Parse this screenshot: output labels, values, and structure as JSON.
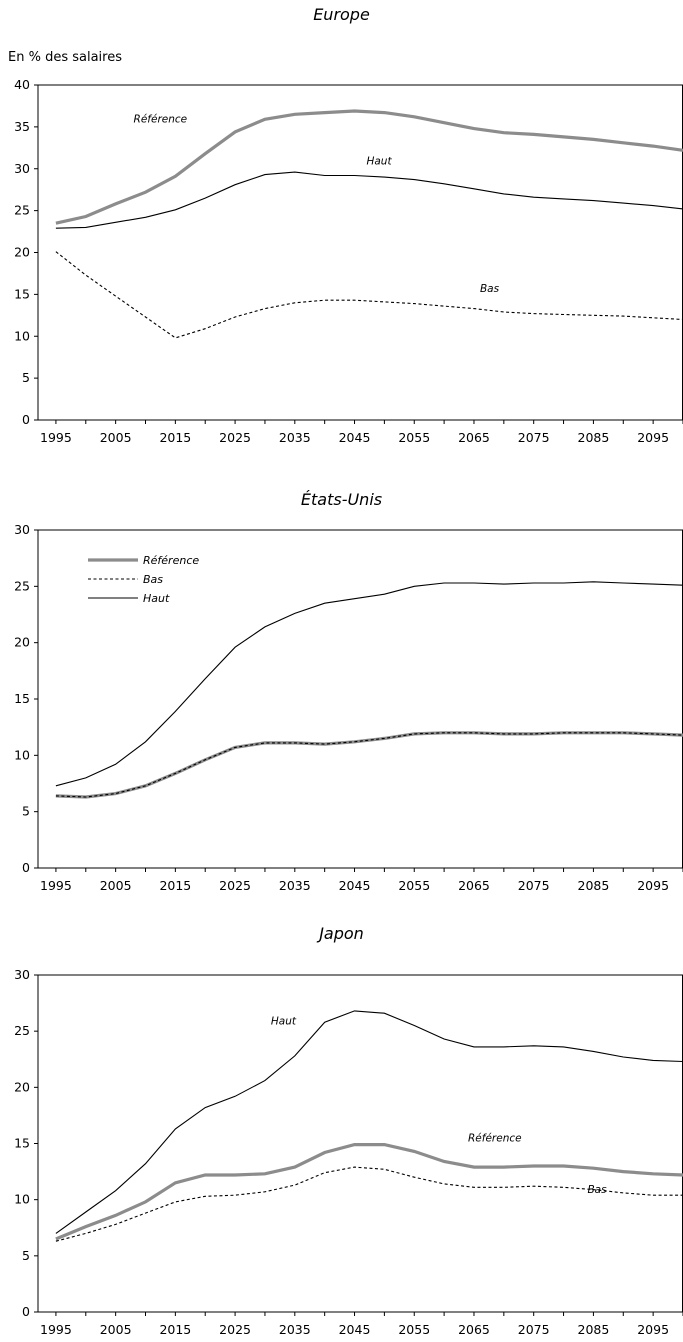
{
  "chart_data": [
    {
      "type": "line",
      "title": "Europe",
      "ylabel": "En % des salaires",
      "xlabel": "",
      "ylim": [
        0,
        40
      ],
      "yticks": [
        0,
        5,
        10,
        15,
        20,
        25,
        30,
        35,
        40
      ],
      "xlim": [
        1992,
        2100
      ],
      "xticks": [
        1995,
        2005,
        2015,
        2025,
        2035,
        2045,
        2055,
        2065,
        2075,
        2085,
        2095
      ],
      "x": [
        1995,
        2000,
        2005,
        2010,
        2015,
        2020,
        2025,
        2030,
        2035,
        2040,
        2045,
        2050,
        2055,
        2060,
        2065,
        2070,
        2075,
        2080,
        2085,
        2090,
        2095,
        2100
      ],
      "series": [
        {
          "name": "Référence",
          "style": "thick-gray",
          "values": [
            23.5,
            24.3,
            25.8,
            27.2,
            29.1,
            31.8,
            34.4,
            35.9,
            36.5,
            36.7,
            36.9,
            36.7,
            36.2,
            35.5,
            34.8,
            34.3,
            34.1,
            33.8,
            33.5,
            33.1,
            32.7,
            32.2
          ]
        },
        {
          "name": "Haut",
          "style": "thin-solid",
          "values": [
            22.9,
            23.0,
            23.6,
            24.2,
            25.1,
            26.5,
            28.1,
            29.3,
            29.6,
            29.2,
            29.2,
            29.0,
            28.7,
            28.2,
            27.6,
            27.0,
            26.6,
            26.4,
            26.2,
            25.9,
            25.6,
            25.2
          ]
        },
        {
          "name": "Bas",
          "style": "dashed",
          "values": [
            20.1,
            17.3,
            14.8,
            12.3,
            9.8,
            10.9,
            12.3,
            13.3,
            14.0,
            14.3,
            14.3,
            14.1,
            13.9,
            13.6,
            13.3,
            12.9,
            12.7,
            12.6,
            12.5,
            12.4,
            12.2,
            12.0
          ]
        }
      ],
      "annotations": [
        {
          "text": "Référence",
          "x": 2008,
          "y": 35.5
        },
        {
          "text": "Haut",
          "x": 2047,
          "y": 30.5
        },
        {
          "text": "Bas",
          "x": 2066,
          "y": 15.3
        }
      ],
      "grid": false,
      "legend": "none"
    },
    {
      "type": "line",
      "title": "États-Unis",
      "ylabel": "",
      "xlabel": "",
      "ylim": [
        0,
        30
      ],
      "yticks": [
        0,
        5,
        10,
        15,
        20,
        25,
        30
      ],
      "xlim": [
        1992,
        2100
      ],
      "xticks": [
        1995,
        2005,
        2015,
        2025,
        2035,
        2045,
        2055,
        2065,
        2075,
        2085,
        2095
      ],
      "x": [
        1995,
        2000,
        2005,
        2010,
        2015,
        2020,
        2025,
        2030,
        2035,
        2040,
        2045,
        2050,
        2055,
        2060,
        2065,
        2070,
        2075,
        2080,
        2085,
        2090,
        2095,
        2100
      ],
      "series": [
        {
          "name": "Référence",
          "style": "thick-gray",
          "values": [
            6.4,
            6.3,
            6.6,
            7.3,
            8.4,
            9.6,
            10.7,
            11.1,
            11.1,
            11.0,
            11.2,
            11.5,
            11.9,
            12.0,
            12.0,
            11.9,
            11.9,
            12.0,
            12.0,
            12.0,
            11.9,
            11.8
          ]
        },
        {
          "name": "Bas",
          "style": "dashed",
          "values": [
            6.4,
            6.3,
            6.6,
            7.3,
            8.4,
            9.6,
            10.7,
            11.1,
            11.1,
            11.0,
            11.2,
            11.5,
            11.9,
            12.0,
            12.0,
            11.9,
            11.9,
            12.0,
            12.0,
            12.0,
            11.9,
            11.8
          ]
        },
        {
          "name": "Haut",
          "style": "thin-solid",
          "values": [
            7.3,
            8.0,
            9.2,
            11.2,
            13.9,
            16.8,
            19.6,
            21.4,
            22.6,
            23.5,
            23.9,
            24.3,
            25.0,
            25.3,
            25.3,
            25.2,
            25.3,
            25.3,
            25.4,
            25.3,
            25.2,
            25.1
          ]
        }
      ],
      "legend_entries": [
        "Référence",
        "Bas",
        "Haut"
      ],
      "grid": false,
      "legend": "top-left"
    },
    {
      "type": "line",
      "title": "Japon",
      "ylabel": "",
      "xlabel": "",
      "ylim": [
        0,
        30
      ],
      "yticks": [
        0,
        5,
        10,
        15,
        20,
        25,
        30
      ],
      "xlim": [
        1992,
        2100
      ],
      "xticks": [
        1995,
        2005,
        2015,
        2025,
        2035,
        2045,
        2055,
        2065,
        2075,
        2085,
        2095
      ],
      "x": [
        1995,
        2000,
        2005,
        2010,
        2015,
        2020,
        2025,
        2030,
        2035,
        2040,
        2045,
        2050,
        2055,
        2060,
        2065,
        2070,
        2075,
        2080,
        2085,
        2090,
        2095,
        2100
      ],
      "series": [
        {
          "name": "Haut",
          "style": "thin-solid",
          "values": [
            7.0,
            8.9,
            10.8,
            13.2,
            16.3,
            18.2,
            19.2,
            20.6,
            22.8,
            25.8,
            26.8,
            26.6,
            25.5,
            24.3,
            23.6,
            23.6,
            23.7,
            23.6,
            23.2,
            22.7,
            22.4,
            22.3
          ]
        },
        {
          "name": "Référence",
          "style": "thick-gray",
          "values": [
            6.5,
            7.6,
            8.6,
            9.8,
            11.5,
            12.2,
            12.2,
            12.3,
            12.9,
            14.2,
            14.9,
            14.9,
            14.3,
            13.4,
            12.9,
            12.9,
            13.0,
            13.0,
            12.8,
            12.5,
            12.3,
            12.2
          ]
        },
        {
          "name": "Bas",
          "style": "dashed",
          "values": [
            6.3,
            7.0,
            7.8,
            8.8,
            9.8,
            10.3,
            10.4,
            10.7,
            11.3,
            12.4,
            12.9,
            12.7,
            12.0,
            11.4,
            11.1,
            11.1,
            11.2,
            11.1,
            10.9,
            10.6,
            10.4,
            10.4
          ]
        }
      ],
      "annotations": [
        {
          "text": "Haut",
          "x": 2031,
          "y": 25.6
        },
        {
          "text": "Référence",
          "x": 2064,
          "y": 15.2
        },
        {
          "text": "Bas",
          "x": 2084,
          "y": 10.6
        }
      ],
      "grid": false,
      "legend": "none"
    }
  ]
}
